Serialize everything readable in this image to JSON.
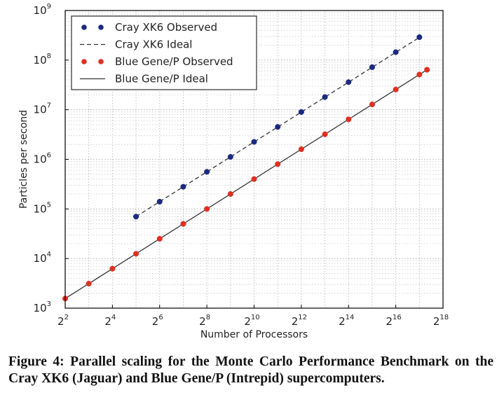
{
  "chart_data": {
    "type": "scatter",
    "xlabel": "Number of Processors",
    "ylabel": "Particles per second",
    "x_scale": "log2",
    "y_scale": "log10",
    "xlim_exponent": [
      2,
      18
    ],
    "ylim_exponent": [
      3,
      9
    ],
    "x_ticks": [
      {
        "base": "2",
        "exp": "2",
        "e": 2
      },
      {
        "base": "2",
        "exp": "4",
        "e": 4
      },
      {
        "base": "2",
        "exp": "6",
        "e": 6
      },
      {
        "base": "2",
        "exp": "8",
        "e": 8
      },
      {
        "base": "2",
        "exp": "10",
        "e": 10
      },
      {
        "base": "2",
        "exp": "12",
        "e": 12
      },
      {
        "base": "2",
        "exp": "14",
        "e": 14
      },
      {
        "base": "2",
        "exp": "16",
        "e": 16
      },
      {
        "base": "2",
        "exp": "18",
        "e": 18
      }
    ],
    "y_ticks": [
      {
        "base": "10",
        "exp": "3",
        "e": 3
      },
      {
        "base": "10",
        "exp": "4",
        "e": 4
      },
      {
        "base": "10",
        "exp": "5",
        "e": 5
      },
      {
        "base": "10",
        "exp": "6",
        "e": 6
      },
      {
        "base": "10",
        "exp": "7",
        "e": 7
      },
      {
        "base": "10",
        "exp": "8",
        "e": 8
      },
      {
        "base": "10",
        "exp": "9",
        "e": 9
      }
    ],
    "grid": true,
    "legend_position": "top-left",
    "series": [
      {
        "name": "Cray XK6 Observed",
        "kind": "markers",
        "color": "#1a2a80",
        "x": [
          32,
          64,
          128,
          256,
          512,
          1024,
          2048,
          4096,
          8192,
          16384,
          32768,
          65536,
          131072
        ],
        "y": [
          70000,
          140000,
          280000,
          560000,
          1120000,
          2250000,
          4500000,
          9000000,
          18000000,
          36000000,
          72000000,
          145000000,
          290000000
        ]
      },
      {
        "name": "Cray XK6 Ideal",
        "kind": "dashed-line",
        "color": "#333333",
        "x": [
          32,
          131072
        ],
        "y": [
          70000,
          286720000
        ]
      },
      {
        "name": "Blue Gene/P Observed",
        "kind": "markers",
        "color": "#e03020",
        "x": [
          4,
          8,
          16,
          32,
          64,
          128,
          256,
          512,
          1024,
          2048,
          4096,
          8192,
          16384,
          32768,
          65536,
          131072,
          163840
        ],
        "y": [
          1560,
          3120,
          6250,
          12500,
          25000,
          50000,
          100000,
          200000,
          400000,
          800000,
          1600000,
          3200000,
          6400000,
          12800000,
          25600000,
          51200000,
          64000000
        ]
      },
      {
        "name": "Blue Gene/P Ideal",
        "kind": "solid-line",
        "color": "#333333",
        "x": [
          4,
          163840
        ],
        "y": [
          1560,
          63897600
        ]
      }
    ]
  },
  "caption": {
    "text": "Figure 4: Parallel scaling for the Monte Carlo Performance Benchmark on the Cray XK6 (Jaguar) and Blue Gene/P (Intrepid) supercomputers."
  }
}
